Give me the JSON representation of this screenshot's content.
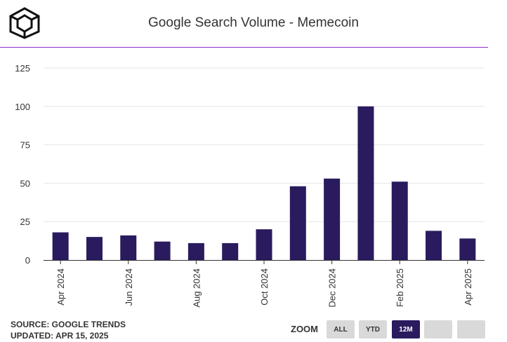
{
  "header": {
    "title": "Google Search Volume - Memecoin"
  },
  "footer": {
    "source": "SOURCE: GOOGLE TRENDS",
    "updated": "UPDATED: APR 15, 2025"
  },
  "zoom": {
    "label": "ZOOM",
    "buttons": [
      {
        "label": "ALL",
        "active": false
      },
      {
        "label": "YTD",
        "active": false
      },
      {
        "label": "12M",
        "active": true
      },
      {
        "label": "",
        "active": false
      },
      {
        "label": "",
        "active": false
      }
    ]
  },
  "colors": {
    "bar": "#2a1b5e",
    "accent_line": "#8b2fc9",
    "grid": "#e6e6e6"
  },
  "chart_data": {
    "type": "bar",
    "title": "Google Search Volume - Memecoin",
    "xlabel": "",
    "ylabel": "",
    "ylim": [
      0,
      125
    ],
    "yticks": [
      0,
      25,
      50,
      75,
      100,
      125
    ],
    "grid": true,
    "categories": [
      "2024-04",
      "2024-05",
      "2024-06",
      "2024-07",
      "2024-08",
      "2024-09",
      "2024-10",
      "2024-11",
      "2024-12",
      "2025-01",
      "2025-02",
      "2025-03",
      "2025-04"
    ],
    "values": [
      18,
      15,
      16,
      12,
      11,
      11,
      20,
      48,
      53,
      100,
      51,
      19,
      14
    ],
    "tick_labels": [
      {
        "index": 0,
        "label": "Apr 2024"
      },
      {
        "index": 2,
        "label": "Jun 2024"
      },
      {
        "index": 4,
        "label": "Aug 2024"
      },
      {
        "index": 6,
        "label": "Oct 2024"
      },
      {
        "index": 8,
        "label": "Dec 2024"
      },
      {
        "index": 10,
        "label": "Feb 2025"
      },
      {
        "index": 12,
        "label": "Apr 2025"
      }
    ]
  }
}
